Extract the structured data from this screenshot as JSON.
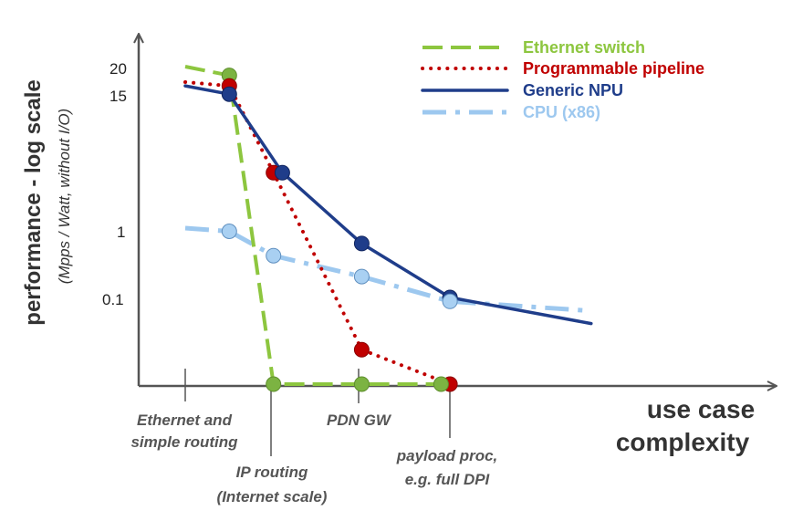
{
  "chart_data": {
    "type": "line",
    "y_scale": "log",
    "ylabel": "performance - log scale",
    "ylabel_sub": "(Mpps / Watt, without I/O)",
    "xlabel": [
      "use case",
      "complexity"
    ],
    "y_ticks": [
      "20",
      "15",
      "1",
      "0.1"
    ],
    "categories": [
      {
        "lines": [
          "Ethernet and",
          "simple routing"
        ]
      },
      {
        "lines": [
          "IP routing",
          "(Internet scale)"
        ]
      },
      {
        "lines": [
          "PDN GW"
        ]
      },
      {
        "lines": [
          "payload proc,",
          "e.g. full DPI"
        ]
      }
    ],
    "series": [
      {
        "name": "Ethernet switch",
        "color": "#8dc63f",
        "style": "dashed",
        "points": [
          [
            0.0,
            20
          ],
          [
            0.5,
            17
          ],
          [
            1.0,
            0.01
          ],
          [
            1.9,
            0.01
          ],
          [
            2.9,
            0.01
          ]
        ]
      },
      {
        "name": "Programmable pipeline",
        "color": "#c00000",
        "style": "dotted",
        "points": [
          [
            0.0,
            15
          ],
          [
            0.5,
            14
          ],
          [
            1.0,
            2.8
          ],
          [
            2.0,
            0.025
          ],
          [
            3.0,
            0.01
          ]
        ]
      },
      {
        "name": "Generic NPU",
        "color": "#1f3d8a",
        "style": "solid",
        "points": [
          [
            0.0,
            14
          ],
          [
            0.5,
            12
          ],
          [
            1.1,
            2.8
          ],
          [
            2.0,
            0.6
          ],
          [
            3.0,
            0.1
          ],
          [
            4.6,
            0.05
          ]
        ]
      },
      {
        "name": "CPU (x86)",
        "color": "#9dc8ef",
        "style": "dashdot",
        "points": [
          [
            0.0,
            1.0
          ],
          [
            0.5,
            0.9
          ],
          [
            1.0,
            0.4
          ],
          [
            2.0,
            0.2
          ],
          [
            3.0,
            0.09
          ],
          [
            4.6,
            0.07
          ]
        ]
      }
    ],
    "markers": [
      {
        "series": 0,
        "x": 0.5,
        "y": 17
      },
      {
        "series": 1,
        "x": 0.5,
        "y": 14
      },
      {
        "series": 2,
        "x": 0.5,
        "y": 12
      },
      {
        "series": 3,
        "x": 0.5,
        "y": 0.9
      },
      {
        "series": 1,
        "x": 1.0,
        "y": 2.8
      },
      {
        "series": 2,
        "x": 1.1,
        "y": 2.8
      },
      {
        "series": 3,
        "x": 1.0,
        "y": 0.4
      },
      {
        "series": 0,
        "x": 1.0,
        "y": 0.01
      },
      {
        "series": 2,
        "x": 2.0,
        "y": 0.6
      },
      {
        "series": 3,
        "x": 2.0,
        "y": 0.2
      },
      {
        "series": 1,
        "x": 2.0,
        "y": 0.025
      },
      {
        "series": 0,
        "x": 2.0,
        "y": 0.01
      },
      {
        "series": 2,
        "x": 3.0,
        "y": 0.1
      },
      {
        "series": 3,
        "x": 3.0,
        "y": 0.09
      },
      {
        "series": 1,
        "x": 3.0,
        "y": 0.01
      },
      {
        "series": 0,
        "x": 2.9,
        "y": 0.01
      }
    ],
    "legend_position": "top-right",
    "grid": false
  }
}
